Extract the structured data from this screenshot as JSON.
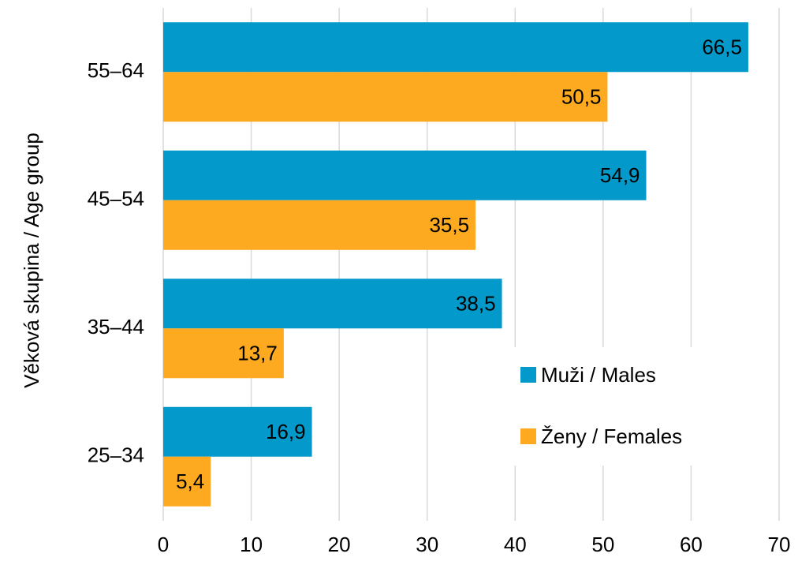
{
  "chart_data": {
    "type": "bar",
    "orientation": "horizontal",
    "y_label": "Věková skupina / Age group",
    "categories": [
      "25–34",
      "35–44",
      "45–54",
      "55–64"
    ],
    "series": [
      {
        "name": "Muži / Males",
        "color": "#0499cb",
        "values": [
          16.9,
          38.5,
          54.9,
          66.5
        ],
        "value_labels": [
          "16,9",
          "38,5",
          "54,9",
          "66,5"
        ]
      },
      {
        "name": "Ženy / Females",
        "color": "#fdaa21",
        "values": [
          5.4,
          13.7,
          35.5,
          50.5
        ],
        "value_labels": [
          "5,4",
          "13,7",
          "35,5",
          "50,5"
        ]
      }
    ],
    "xlim": [
      0,
      70
    ],
    "xticks": [
      0,
      10,
      20,
      30,
      40,
      50,
      60,
      70
    ],
    "grid": true,
    "legend": "lower right"
  }
}
